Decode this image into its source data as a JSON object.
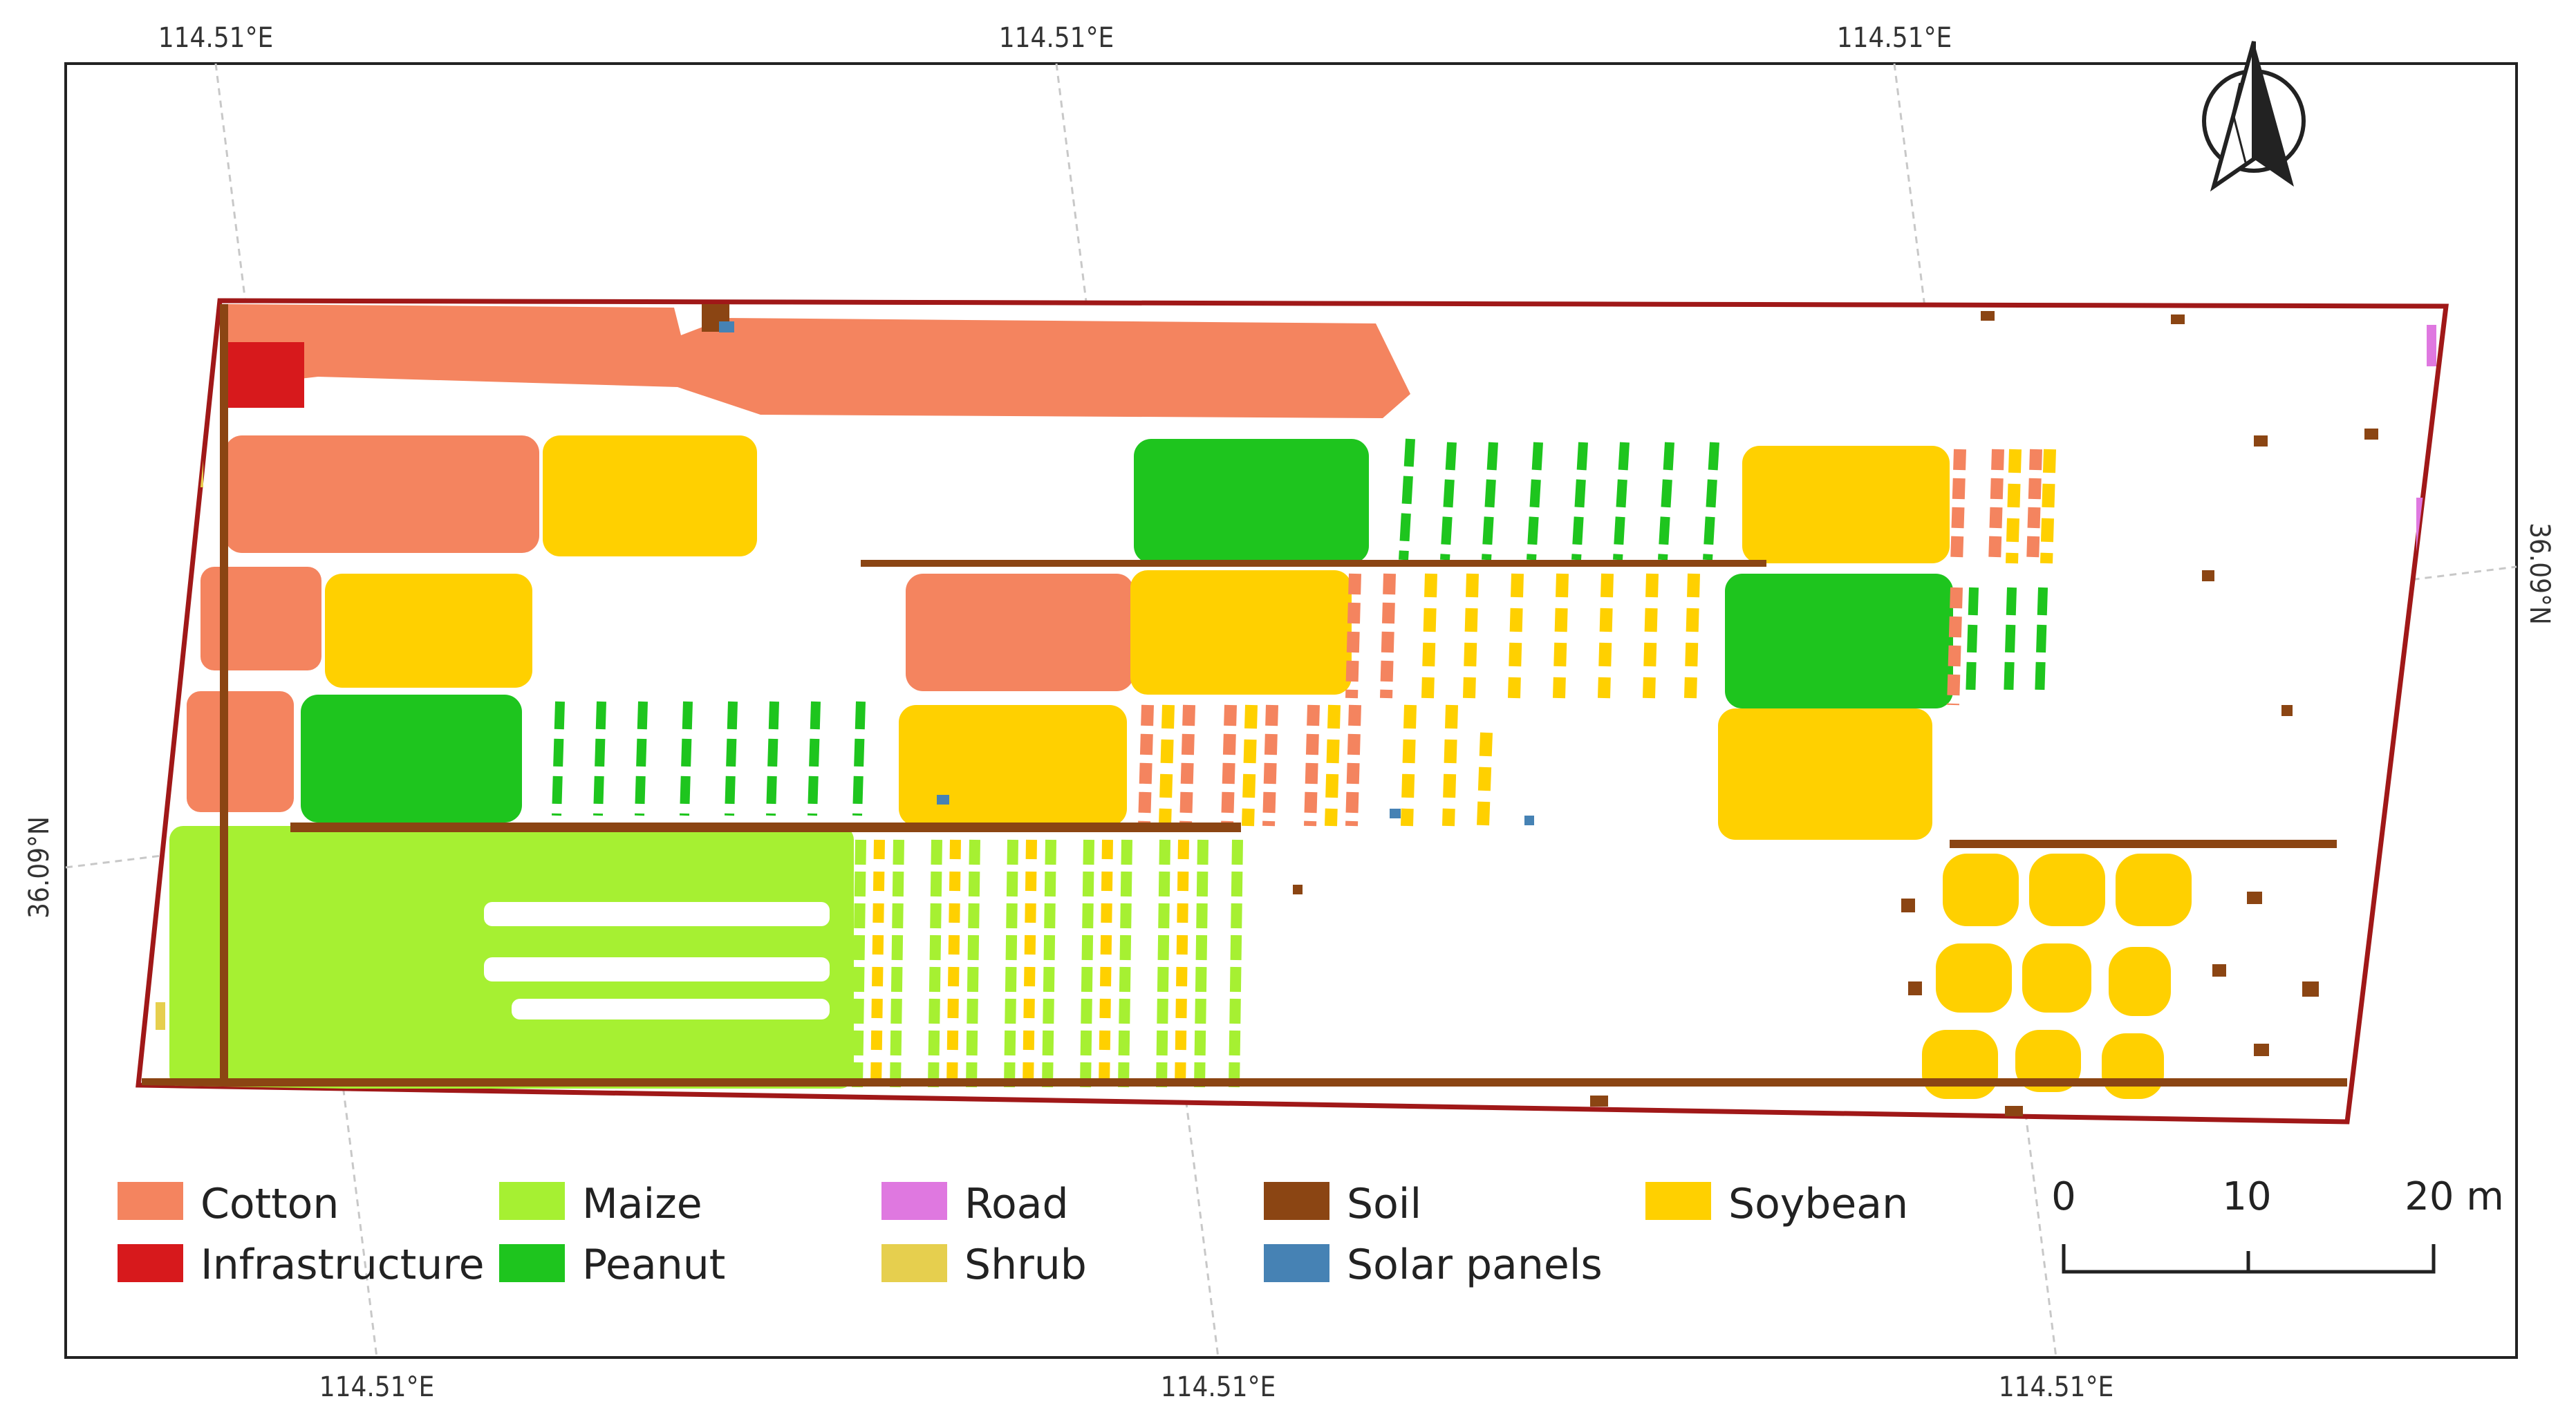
{
  "map": {
    "grid_labels": {
      "top": [
        "114.51°E",
        "114.51°E",
        "114.51°E"
      ],
      "bottom": [
        "114.51°E",
        "114.51°E",
        "114.51°E"
      ],
      "left": "36.09°N",
      "right": "36.09°N"
    },
    "north_arrow": "north-arrow",
    "scale_bar": {
      "ticks": [
        "0",
        "10",
        "20 m"
      ]
    },
    "legend": [
      {
        "label": "Cotton",
        "color": "#f4845f"
      },
      {
        "label": "Infrastructure",
        "color": "#d7191c"
      },
      {
        "label": "Maize",
        "color": "#a6f032"
      },
      {
        "label": "Peanut",
        "color": "#1ec51e"
      },
      {
        "label": "Road",
        "color": "#df78e0"
      },
      {
        "label": "Shrub",
        "color": "#e6cf4e"
      },
      {
        "label": "Soil",
        "color": "#8b4513"
      },
      {
        "label": "Solar panels",
        "color": "#4682b4"
      },
      {
        "label": "Soybean",
        "color": "#ffd000"
      }
    ]
  }
}
